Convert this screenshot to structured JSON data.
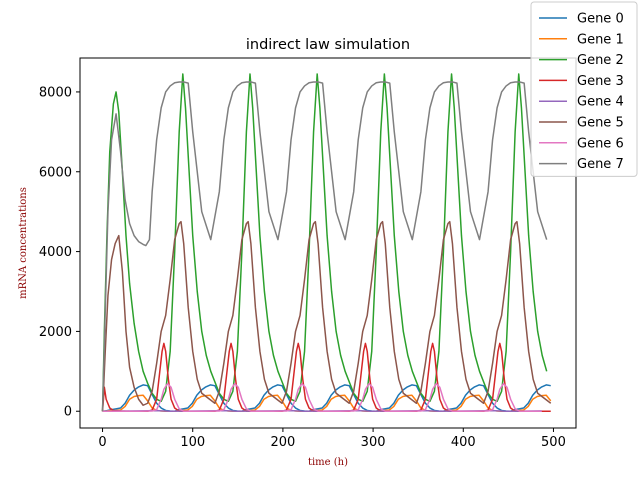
{
  "chart_data": {
    "type": "line",
    "title": "indirect law simulation",
    "xlabel": "time (h)",
    "ylabel": "mRNA concentrations",
    "xlim": [
      -25,
      525
    ],
    "ylim": [
      -420,
      8850
    ],
    "xticks": [
      0,
      100,
      200,
      300,
      400,
      500
    ],
    "yticks": [
      0,
      2000,
      4000,
      6000,
      8000
    ],
    "grid": false,
    "legend_position": "top-right",
    "period": 74.5,
    "series": [
      {
        "name": "Gene 0",
        "color": "#1f77b4",
        "peak": 670,
        "peak_time": 46,
        "x": [
          0,
          5,
          10,
          15,
          20,
          25,
          30,
          35,
          40,
          45,
          50,
          55,
          60,
          65,
          70,
          75,
          80
        ],
        "y": [
          0,
          15,
          40,
          60,
          80,
          200,
          400,
          530,
          610,
          660,
          640,
          420,
          200,
          80,
          20,
          5,
          0
        ]
      },
      {
        "name": "Gene 1",
        "color": "#ff7f0e",
        "peak": 400,
        "peak_time": 48,
        "x": [
          0,
          5,
          10,
          15,
          20,
          25,
          30,
          35,
          40,
          45,
          50,
          55,
          60,
          65,
          70,
          75,
          80
        ],
        "y": [
          0,
          5,
          15,
          20,
          30,
          120,
          300,
          370,
          390,
          400,
          260,
          80,
          20,
          5,
          0,
          0,
          0
        ]
      },
      {
        "name": "Gene 2",
        "color": "#2ca02c",
        "peak": 8450,
        "peak_time": 89,
        "x": [
          0,
          2,
          5,
          8,
          12,
          15,
          18,
          22,
          26,
          30,
          35,
          40,
          45,
          50,
          55,
          60,
          65,
          70,
          75,
          80,
          85,
          89,
          92,
          96,
          100,
          105,
          110,
          115,
          120
        ],
        "y": [
          0,
          2000,
          4500,
          6500,
          7700,
          8000,
          7500,
          6000,
          4400,
          3200,
          2200,
          1500,
          1000,
          700,
          450,
          300,
          250,
          500,
          1500,
          4000,
          7000,
          8450,
          7600,
          6000,
          4400,
          3000,
          2000,
          1400,
          1000
        ]
      },
      {
        "name": "Gene 3",
        "color": "#d62728",
        "peak": 1700,
        "peak_time": 68,
        "x": [
          0,
          2,
          4,
          8,
          12,
          20,
          30,
          40,
          50,
          55,
          60,
          63,
          66,
          68,
          70,
          73,
          76,
          80,
          85
        ],
        "y": [
          0,
          600,
          300,
          80,
          20,
          5,
          0,
          0,
          0,
          30,
          300,
          900,
          1500,
          1700,
          1500,
          800,
          300,
          80,
          0
        ]
      },
      {
        "name": "Gene 4",
        "color": "#9467bd",
        "peak": 15,
        "peak_time": 60,
        "x": [
          0,
          20,
          40,
          60,
          74.5
        ],
        "y": [
          0,
          5,
          10,
          15,
          0
        ]
      },
      {
        "name": "Gene 5",
        "color": "#8c564b",
        "peak": 4750,
        "peak_time": 87,
        "x": [
          0,
          3,
          6,
          10,
          14,
          18,
          22,
          26,
          30,
          35,
          40,
          45,
          50,
          55,
          60,
          65,
          70,
          75,
          80,
          85,
          87,
          90,
          95,
          100,
          105,
          110
        ],
        "y": [
          0,
          1500,
          2900,
          3800,
          4200,
          4400,
          3500,
          2000,
          1100,
          600,
          300,
          150,
          200,
          500,
          1200,
          2000,
          2400,
          3300,
          4300,
          4700,
          4750,
          4200,
          2600,
          1500,
          800,
          450
        ]
      },
      {
        "name": "Gene 6",
        "color": "#e377c2",
        "peak": 690,
        "peak_time": 72,
        "x": [
          0,
          10,
          20,
          40,
          55,
          60,
          65,
          68,
          72,
          76,
          80,
          85,
          90
        ],
        "y": [
          0,
          0,
          0,
          0,
          5,
          40,
          300,
          550,
          690,
          600,
          300,
          60,
          0
        ]
      },
      {
        "name": "Gene 7",
        "color": "#7f7f7f",
        "peak": 8250,
        "peak_time": 90,
        "x": [
          0,
          3,
          6,
          10,
          15,
          20,
          25,
          30,
          35,
          40,
          45,
          48,
          52,
          55,
          60,
          65,
          70,
          75,
          80,
          85,
          90,
          95,
          100,
          110,
          120
        ],
        "y": [
          0,
          2500,
          5000,
          6800,
          7450,
          6500,
          5300,
          4700,
          4400,
          4250,
          4180,
          4150,
          4300,
          5500,
          6800,
          7600,
          8000,
          8150,
          8230,
          8250,
          8250,
          8220,
          7000,
          5000,
          4300
        ]
      }
    ]
  }
}
